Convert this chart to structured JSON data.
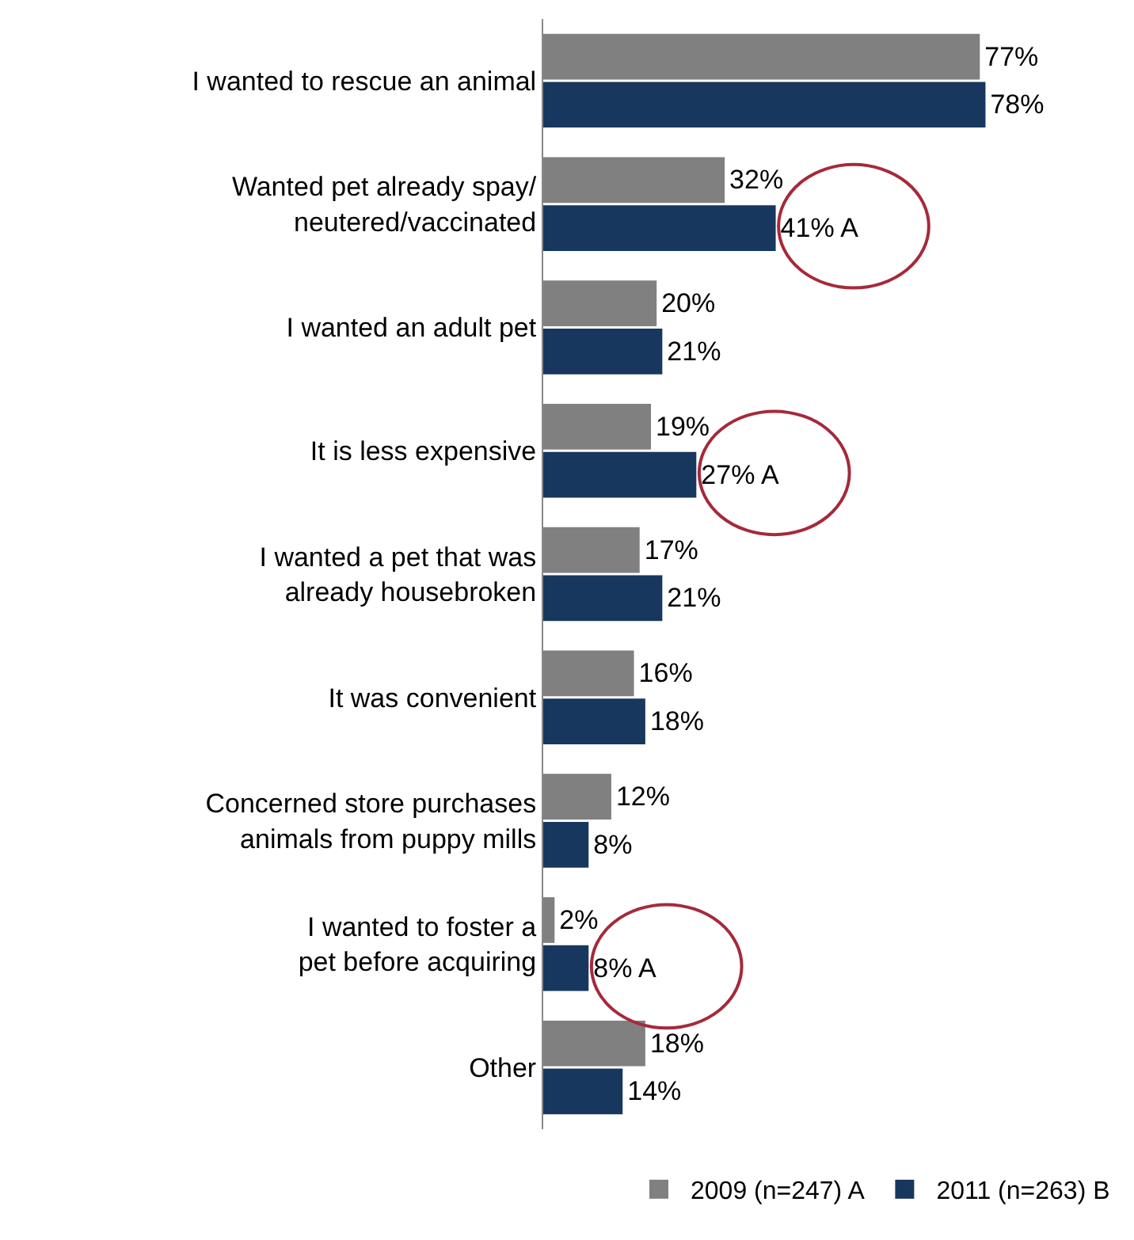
{
  "chart_data": {
    "type": "bar",
    "orientation": "horizontal",
    "categories": [
      "I wanted to rescue an animal",
      "Wanted pet already spay/\nneutered/vaccinated",
      "I wanted an adult pet",
      "It is less expensive",
      "I wanted a pet that was\nalready housebroken",
      "It was convenient",
      "Concerned store purchases\nanimals from puppy mills",
      "I wanted to foster a\npet before acquiring",
      "Other"
    ],
    "series": [
      {
        "name": "2009 (n=247) A",
        "color": "#808080",
        "values": [
          77,
          32,
          20,
          19,
          17,
          16,
          12,
          2,
          18
        ],
        "value_labels": [
          "77%",
          "32%",
          "20%",
          "19%",
          "17%",
          "16%",
          "12%",
          "2%",
          "18%"
        ]
      },
      {
        "name": "2011 (n=263) B",
        "color": "#17375e",
        "values": [
          78,
          41,
          21,
          27,
          21,
          18,
          8,
          8,
          14
        ],
        "value_labels": [
          "78%",
          "41% A",
          "21%",
          "27% A",
          "21%",
          "18%",
          "8%",
          "8% A",
          "14%"
        ]
      }
    ],
    "legend": "bottom right"
  }
}
